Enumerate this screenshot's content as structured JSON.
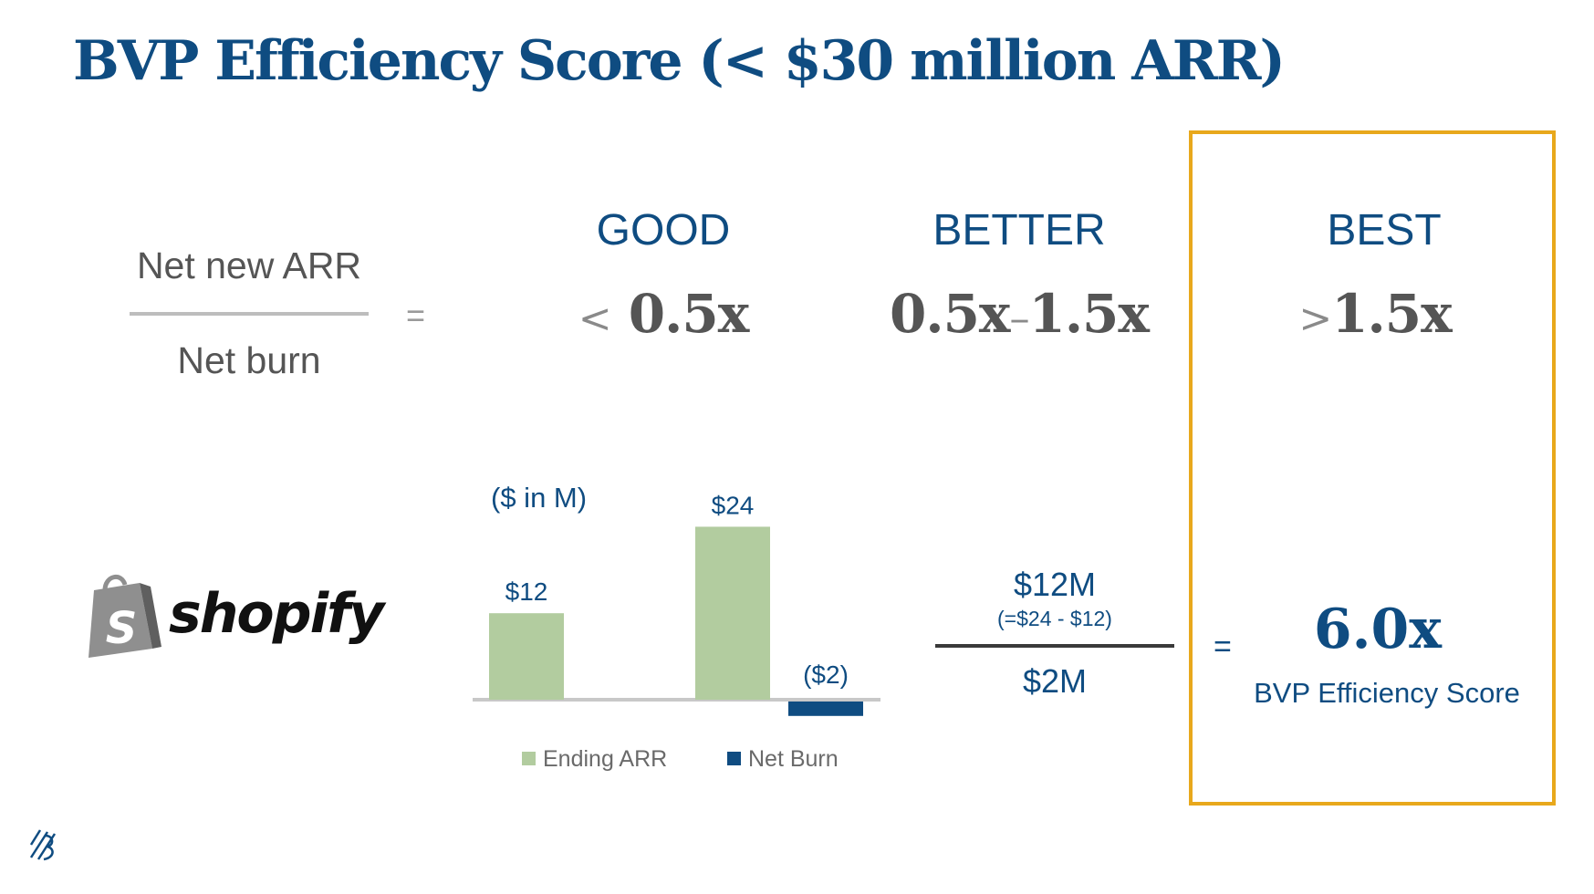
{
  "title": "BVP Efficiency Score (< $30 million ARR)",
  "formula": {
    "numerator": "Net new ARR",
    "denominator": "Net burn",
    "equals": "="
  },
  "tiers": [
    {
      "label": "GOOD",
      "range_prefix": "<",
      "range_value": "0.5x"
    },
    {
      "label": "BETTER",
      "range_a": "0.5x",
      "range_dash": "–",
      "range_b": "1.5x"
    },
    {
      "label": "BEST",
      "range_prefix": ">",
      "range_value": "1.5x"
    }
  ],
  "logo": {
    "brand": "shopify",
    "icon": "shopping-bag-icon",
    "icon_letter": "S"
  },
  "chart": {
    "unit_label": "($ in M)"
  },
  "chart_data": {
    "type": "bar",
    "categories": [
      "",
      ""
    ],
    "series": [
      {
        "name": "Ending ARR",
        "color": "#b2cc9f",
        "values": [
          12,
          24
        ],
        "labels": [
          "$12",
          "$24"
        ]
      },
      {
        "name": "Net Burn",
        "color": "#0f4c81",
        "values": [
          null,
          -2
        ],
        "labels": [
          "",
          "($2)"
        ]
      }
    ],
    "title": "",
    "xlabel": "",
    "ylabel": "",
    "ylim": [
      -2,
      24
    ],
    "grid": false,
    "legend": "bottom"
  },
  "calc": {
    "numerator": "$12M",
    "numerator_note": "(=$24 - $12)",
    "denominator": "$2M",
    "equals": "="
  },
  "result": {
    "score": "6.0x",
    "label": "BVP Efficiency Score"
  },
  "colors": {
    "brand_blue": "#0f4c81",
    "green": "#b2cc9f",
    "highlight": "#e8a81c",
    "gray_text": "#555555"
  },
  "corner_icon": "bvp-logo-icon"
}
